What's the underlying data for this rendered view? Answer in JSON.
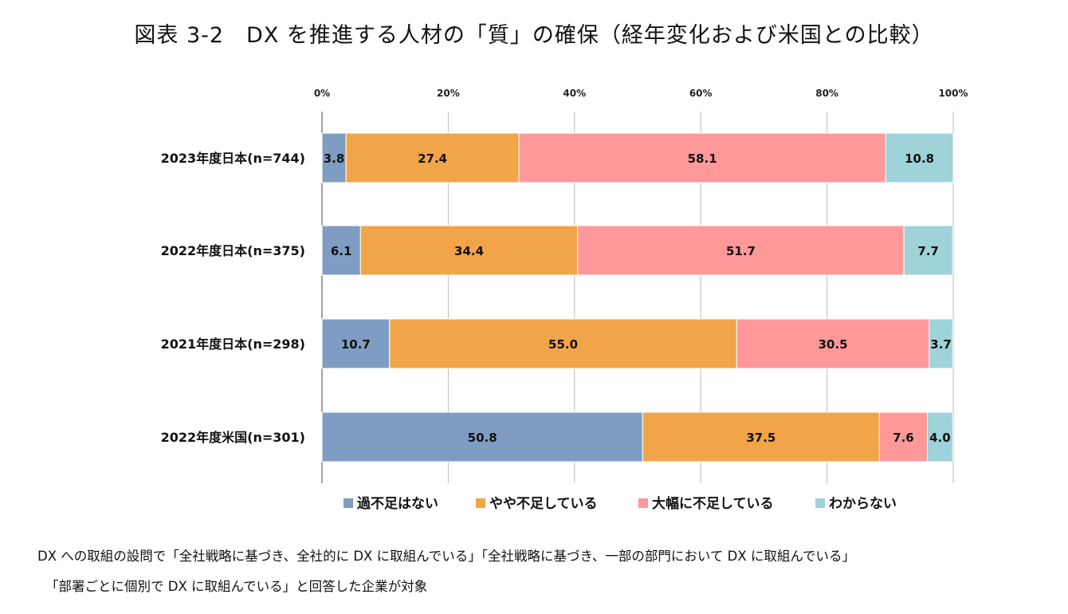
{
  "title": "図表 3-2　DX を推進する人材の「質」の確保（経年変化および米国との比較）",
  "notes": [
    "DX への取組の設問で「全社戦略に基づき、全社的に DX に取組んでいる」「全社戦略に基づき、一部の部門において DX に取組んでいる」",
    "「部署ごとに個別で DX に取組んでいる」と回答した企業が対象"
  ],
  "chart_data": {
    "type": "bar",
    "orientation": "horizontal",
    "stacked": true,
    "categories": [
      "2023年度日本(n=744)",
      "2022年度日本(n=375)",
      "2021年度日本(n=298)",
      "2022年度米国(n=301)"
    ],
    "series": [
      {
        "name": "過不足はない",
        "color": "#7f9dc2",
        "values": [
          3.8,
          6.1,
          10.7,
          50.8
        ]
      },
      {
        "name": "やや不足している",
        "color": "#f2a548",
        "values": [
          27.4,
          34.4,
          55.0,
          37.5
        ]
      },
      {
        "name": "大幅に不足している",
        "color": "#ff9999",
        "values": [
          58.1,
          51.7,
          30.5,
          7.6
        ]
      },
      {
        "name": "わからない",
        "color": "#9dd3d9",
        "values": [
          10.8,
          7.7,
          3.7,
          4.0
        ]
      }
    ],
    "x_ticks": [
      "0%",
      "20%",
      "40%",
      "60%",
      "80%",
      "100%"
    ],
    "xlim": [
      0,
      100
    ],
    "grid": true,
    "legend_position": "bottom"
  }
}
